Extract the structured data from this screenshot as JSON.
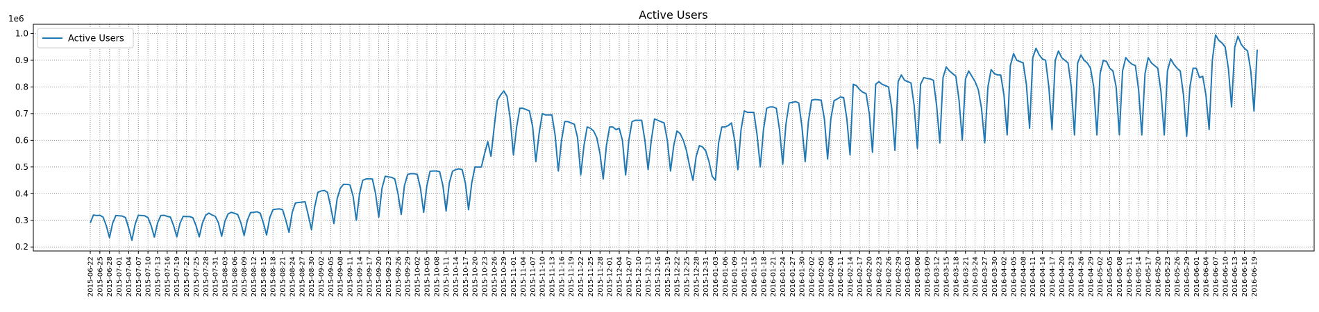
{
  "chart_data": {
    "type": "line",
    "title": "Active Users",
    "xlabel": "",
    "ylabel": "",
    "y_multiplier_label": "1e6",
    "ylim": [
      0.185,
      1.035
    ],
    "yticks": [
      0.2,
      0.3,
      0.4,
      0.5,
      0.6,
      0.7,
      0.8,
      0.9,
      1.0
    ],
    "grid": true,
    "legend": "top-left",
    "x_start": "2015-06-22",
    "x_end": "2016-06-20",
    "xtick_step_days": 3,
    "series": [
      {
        "name": "Active Users",
        "color": "#1f77b4",
        "unit_scale": 1000000,
        "weekly_pattern_note": "values read approximately from plot",
        "x": [
          "2015-06-22",
          "2015-06-23",
          "2015-06-24",
          "2015-06-25",
          "2015-06-26",
          "2015-06-27",
          "2015-06-28",
          "2015-06-29",
          "2015-06-30",
          "2015-07-01",
          "2015-07-02",
          "2015-07-03",
          "2015-07-04",
          "2015-07-05",
          "2015-07-06",
          "2015-07-07",
          "2015-07-08",
          "2015-07-09",
          "2015-07-10",
          "2015-07-11",
          "2015-07-12",
          "2015-07-13",
          "2015-07-14",
          "2015-07-15",
          "2015-07-16",
          "2015-07-17",
          "2015-07-18",
          "2015-07-19",
          "2015-07-20",
          "2015-07-21",
          "2015-07-22",
          "2015-07-23",
          "2015-07-24",
          "2015-07-25",
          "2015-07-26",
          "2015-07-27",
          "2015-07-28",
          "2015-07-29",
          "2015-07-30",
          "2015-07-31",
          "2015-08-01",
          "2015-08-02",
          "2015-08-03",
          "2015-08-04",
          "2015-08-05",
          "2015-08-06",
          "2015-08-07",
          "2015-08-08",
          "2015-08-09",
          "2015-08-10",
          "2015-08-11",
          "2015-08-12",
          "2015-08-13",
          "2015-08-14",
          "2015-08-15",
          "2015-08-16",
          "2015-08-17",
          "2015-08-18",
          "2015-08-19",
          "2015-08-20",
          "2015-08-21",
          "2015-08-22",
          "2015-08-23",
          "2015-08-24",
          "2015-08-25",
          "2015-08-26",
          "2015-08-27",
          "2015-08-28",
          "2015-08-29",
          "2015-08-30",
          "2015-08-31",
          "2015-09-01",
          "2015-09-02",
          "2015-09-03",
          "2015-09-04",
          "2015-09-05",
          "2015-09-06",
          "2015-09-07",
          "2015-09-08",
          "2015-09-09",
          "2015-09-10",
          "2015-09-11",
          "2015-09-12",
          "2015-09-13",
          "2015-09-14",
          "2015-09-15",
          "2015-09-16",
          "2015-09-17",
          "2015-09-18",
          "2015-09-19",
          "2015-09-20",
          "2015-09-21",
          "2015-09-22",
          "2015-09-23",
          "2015-09-24",
          "2015-09-25",
          "2015-09-26",
          "2015-09-27",
          "2015-09-28",
          "2015-09-29",
          "2015-09-30",
          "2015-10-01",
          "2015-10-02",
          "2015-10-03",
          "2015-10-04",
          "2015-10-05",
          "2015-10-06",
          "2015-10-07",
          "2015-10-08",
          "2015-10-09",
          "2015-10-10",
          "2015-10-11",
          "2015-10-12",
          "2015-10-13",
          "2015-10-14",
          "2015-10-15",
          "2015-10-16",
          "2015-10-17",
          "2015-10-18",
          "2015-10-19",
          "2015-10-20",
          "2015-10-21",
          "2015-10-22",
          "2015-10-23",
          "2015-10-24",
          "2015-10-25",
          "2015-10-26",
          "2015-10-27",
          "2015-10-28",
          "2015-10-29",
          "2015-10-30",
          "2015-10-31",
          "2015-11-01",
          "2015-11-02",
          "2015-11-03",
          "2015-11-04",
          "2015-11-05",
          "2015-11-06",
          "2015-11-07",
          "2015-11-08",
          "2015-11-09",
          "2015-11-10",
          "2015-11-11",
          "2015-11-12",
          "2015-11-13",
          "2015-11-14",
          "2015-11-15",
          "2015-11-16",
          "2015-11-17",
          "2015-11-18",
          "2015-11-19",
          "2015-11-20",
          "2015-11-21",
          "2015-11-22",
          "2015-11-23",
          "2015-11-24",
          "2015-11-25",
          "2015-11-26",
          "2015-11-27",
          "2015-11-28",
          "2015-11-29",
          "2015-11-30",
          "2015-12-01",
          "2015-12-02",
          "2015-12-03",
          "2015-12-04",
          "2015-12-05",
          "2015-12-06",
          "2015-12-07",
          "2015-12-08",
          "2015-12-09",
          "2015-12-10",
          "2015-12-11",
          "2015-12-12",
          "2015-12-13",
          "2015-12-14",
          "2015-12-15",
          "2015-12-16",
          "2015-12-17",
          "2015-12-18",
          "2015-12-19",
          "2015-12-20",
          "2015-12-21",
          "2015-12-22",
          "2015-12-23",
          "2015-12-24",
          "2015-12-25",
          "2015-12-26",
          "2015-12-27",
          "2015-12-28",
          "2015-12-29",
          "2015-12-30",
          "2015-12-31",
          "2016-01-01",
          "2016-01-02",
          "2016-01-03",
          "2016-01-04",
          "2016-01-05",
          "2016-01-06",
          "2016-01-07",
          "2016-01-08",
          "2016-01-09",
          "2016-01-10",
          "2016-01-11",
          "2016-01-12",
          "2016-01-13",
          "2016-01-14",
          "2016-01-15",
          "2016-01-16",
          "2016-01-17",
          "2016-01-18",
          "2016-01-19",
          "2016-01-20",
          "2016-01-21",
          "2016-01-22",
          "2016-01-23",
          "2016-01-24",
          "2016-01-25",
          "2016-01-26",
          "2016-01-27",
          "2016-01-28",
          "2016-01-29",
          "2016-01-30",
          "2016-01-31",
          "2016-02-01",
          "2016-02-02",
          "2016-02-03",
          "2016-02-04",
          "2016-02-05",
          "2016-02-06",
          "2016-02-07",
          "2016-02-08",
          "2016-02-09",
          "2016-02-10",
          "2016-02-11",
          "2016-02-12",
          "2016-02-13",
          "2016-02-14",
          "2016-02-15",
          "2016-02-16",
          "2016-02-17",
          "2016-02-18",
          "2016-02-19",
          "2016-02-20",
          "2016-02-21",
          "2016-02-22",
          "2016-02-23",
          "2016-02-24",
          "2016-02-25",
          "2016-02-26",
          "2016-02-27",
          "2016-02-28",
          "2016-02-29",
          "2016-03-01",
          "2016-03-02",
          "2016-03-03",
          "2016-03-04",
          "2016-03-05",
          "2016-03-06",
          "2016-03-07",
          "2016-03-08",
          "2016-03-09",
          "2016-03-10",
          "2016-03-11",
          "2016-03-12",
          "2016-03-13",
          "2016-03-14",
          "2016-03-15",
          "2016-03-16",
          "2016-03-17",
          "2016-03-18",
          "2016-03-19",
          "2016-03-20",
          "2016-03-21",
          "2016-03-22",
          "2016-03-23",
          "2016-03-24",
          "2016-03-25",
          "2016-03-26",
          "2016-03-27",
          "2016-03-28",
          "2016-03-29",
          "2016-03-30",
          "2016-03-31",
          "2016-04-01",
          "2016-04-02",
          "2016-04-03",
          "2016-04-04",
          "2016-04-05",
          "2016-04-06",
          "2016-04-07",
          "2016-04-08",
          "2016-04-09",
          "2016-04-10",
          "2016-04-11",
          "2016-04-12",
          "2016-04-13",
          "2016-04-14",
          "2016-04-15",
          "2016-04-16",
          "2016-04-17",
          "2016-04-18",
          "2016-04-19",
          "2016-04-20",
          "2016-04-21",
          "2016-04-22",
          "2016-04-23",
          "2016-04-24",
          "2016-04-25",
          "2016-04-26",
          "2016-04-27",
          "2016-04-28",
          "2016-04-29",
          "2016-04-30",
          "2016-05-01",
          "2016-05-02",
          "2016-05-03",
          "2016-05-04",
          "2016-05-05",
          "2016-05-06",
          "2016-05-07",
          "2016-05-08",
          "2016-05-09",
          "2016-05-10",
          "2016-05-11",
          "2016-05-12",
          "2016-05-13",
          "2016-05-14",
          "2016-05-15",
          "2016-05-16",
          "2016-05-17",
          "2016-05-18",
          "2016-05-19",
          "2016-05-20",
          "2016-05-21",
          "2016-05-22",
          "2016-05-23",
          "2016-05-24",
          "2016-05-25",
          "2016-05-26",
          "2016-05-27",
          "2016-05-28",
          "2016-05-29",
          "2016-05-30",
          "2016-05-31",
          "2016-06-01",
          "2016-06-02",
          "2016-06-03",
          "2016-06-04",
          "2016-06-05",
          "2016-06-06",
          "2016-06-07",
          "2016-06-08",
          "2016-06-09",
          "2016-06-10",
          "2016-06-11",
          "2016-06-12",
          "2016-06-13",
          "2016-06-14",
          "2016-06-15",
          "2016-06-16",
          "2016-06-17",
          "2016-06-18",
          "2016-06-19",
          "2016-06-20"
        ],
        "y": [
          0.29,
          0.32,
          0.318,
          0.319,
          0.312,
          0.28,
          0.235,
          0.29,
          0.318,
          0.317,
          0.316,
          0.31,
          0.27,
          0.225,
          0.285,
          0.319,
          0.318,
          0.317,
          0.31,
          0.28,
          0.237,
          0.29,
          0.318,
          0.319,
          0.315,
          0.312,
          0.28,
          0.238,
          0.289,
          0.315,
          0.314,
          0.314,
          0.31,
          0.28,
          0.238,
          0.29,
          0.319,
          0.327,
          0.32,
          0.315,
          0.29,
          0.24,
          0.296,
          0.324,
          0.33,
          0.326,
          0.322,
          0.29,
          0.243,
          0.3,
          0.329,
          0.33,
          0.332,
          0.327,
          0.29,
          0.245,
          0.31,
          0.34,
          0.342,
          0.343,
          0.34,
          0.3,
          0.255,
          0.33,
          0.365,
          0.367,
          0.368,
          0.37,
          0.32,
          0.265,
          0.35,
          0.405,
          0.41,
          0.412,
          0.405,
          0.35,
          0.288,
          0.38,
          0.42,
          0.435,
          0.435,
          0.433,
          0.39,
          0.3,
          0.4,
          0.45,
          0.455,
          0.456,
          0.455,
          0.4,
          0.312,
          0.42,
          0.465,
          0.463,
          0.461,
          0.455,
          0.4,
          0.322,
          0.43,
          0.472,
          0.475,
          0.475,
          0.472,
          0.42,
          0.33,
          0.43,
          0.484,
          0.485,
          0.485,
          0.482,
          0.43,
          0.335,
          0.44,
          0.484,
          0.49,
          0.493,
          0.49,
          0.44,
          0.34,
          0.44,
          0.5,
          0.5,
          0.5,
          0.55,
          0.595,
          0.54,
          0.65,
          0.75,
          0.77,
          0.785,
          0.765,
          0.68,
          0.545,
          0.65,
          0.72,
          0.72,
          0.715,
          0.71,
          0.65,
          0.52,
          0.625,
          0.7,
          0.695,
          0.695,
          0.695,
          0.62,
          0.485,
          0.6,
          0.67,
          0.67,
          0.665,
          0.66,
          0.61,
          0.47,
          0.58,
          0.65,
          0.645,
          0.635,
          0.61,
          0.55,
          0.455,
          0.58,
          0.65,
          0.65,
          0.64,
          0.645,
          0.6,
          0.47,
          0.6,
          0.67,
          0.675,
          0.675,
          0.675,
          0.6,
          0.49,
          0.6,
          0.68,
          0.675,
          0.67,
          0.665,
          0.6,
          0.485,
          0.58,
          0.635,
          0.625,
          0.6,
          0.56,
          0.5,
          0.45,
          0.54,
          0.58,
          0.575,
          0.56,
          0.52,
          0.465,
          0.45,
          0.59,
          0.65,
          0.65,
          0.655,
          0.665,
          0.6,
          0.49,
          0.64,
          0.71,
          0.705,
          0.705,
          0.705,
          0.62,
          0.5,
          0.64,
          0.72,
          0.725,
          0.725,
          0.72,
          0.64,
          0.51,
          0.66,
          0.74,
          0.742,
          0.745,
          0.74,
          0.65,
          0.52,
          0.67,
          0.75,
          0.753,
          0.752,
          0.75,
          0.68,
          0.53,
          0.68,
          0.748,
          0.755,
          0.762,
          0.76,
          0.68,
          0.545,
          0.81,
          0.805,
          0.79,
          0.78,
          0.775,
          0.7,
          0.555,
          0.81,
          0.82,
          0.81,
          0.805,
          0.8,
          0.72,
          0.562,
          0.82,
          0.845,
          0.825,
          0.82,
          0.815,
          0.73,
          0.57,
          0.81,
          0.835,
          0.832,
          0.83,
          0.825,
          0.73,
          0.59,
          0.835,
          0.875,
          0.86,
          0.85,
          0.84,
          0.75,
          0.6,
          0.83,
          0.86,
          0.84,
          0.82,
          0.79,
          0.72,
          0.59,
          0.8,
          0.865,
          0.85,
          0.845,
          0.845,
          0.77,
          0.62,
          0.88,
          0.925,
          0.9,
          0.895,
          0.89,
          0.81,
          0.645,
          0.91,
          0.945,
          0.92,
          0.905,
          0.9,
          0.8,
          0.64,
          0.9,
          0.935,
          0.91,
          0.9,
          0.89,
          0.8,
          0.62,
          0.89,
          0.92,
          0.9,
          0.89,
          0.87,
          0.8,
          0.62,
          0.85,
          0.9,
          0.895,
          0.87,
          0.86,
          0.8,
          0.62,
          0.86,
          0.91,
          0.895,
          0.885,
          0.88,
          0.79,
          0.62,
          0.85,
          0.91,
          0.89,
          0.88,
          0.87,
          0.78,
          0.62,
          0.86,
          0.905,
          0.885,
          0.87,
          0.86,
          0.77,
          0.615,
          0.8,
          0.87,
          0.87,
          0.835,
          0.84,
          0.77,
          0.64,
          0.9,
          0.995,
          0.975,
          0.965,
          0.95,
          0.87,
          0.725,
          0.95,
          0.99,
          0.96,
          0.945,
          0.935,
          0.86,
          0.71,
          0.94
        ]
      }
    ]
  }
}
